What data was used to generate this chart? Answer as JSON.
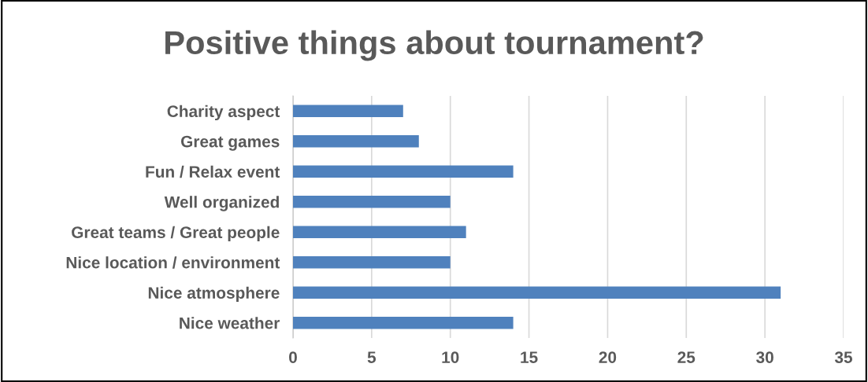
{
  "chart_data": {
    "type": "bar",
    "orientation": "horizontal",
    "title": "Positive things about tournament?",
    "categories": [
      "Charity aspect",
      "Great games",
      "Fun / Relax event",
      "Well organized",
      "Great teams / Great people",
      "Nice location / environment",
      "Nice atmosphere",
      "Nice weather"
    ],
    "values": [
      7,
      8,
      14,
      10,
      11,
      10,
      31,
      14
    ],
    "color": "#4f81bd",
    "xlim": [
      0,
      35
    ],
    "xticks": [
      0,
      5,
      10,
      15,
      20,
      25,
      30,
      35
    ],
    "grid": "x",
    "legend": false
  }
}
